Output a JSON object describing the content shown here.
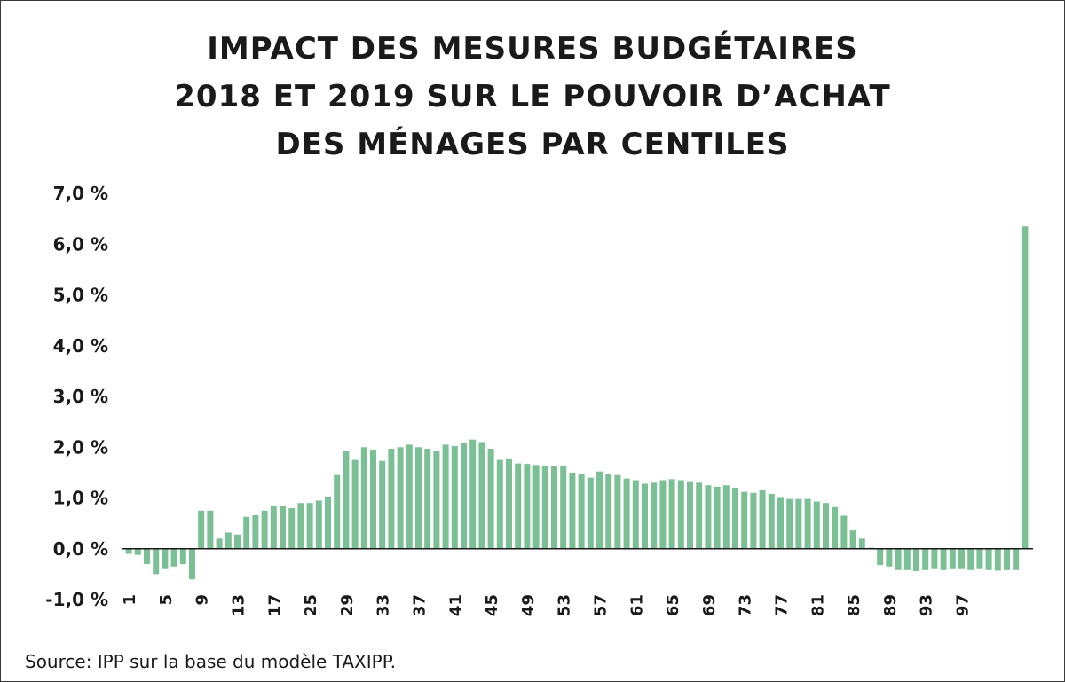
{
  "chart_data": {
    "type": "bar",
    "title_lines": [
      "IMPACT DES MESURES BUDGÉTAIRES",
      "2018 ET 2019 SUR LE POUVOIR D’ACHAT",
      "DES MÉNAGES PAR CENTILES"
    ],
    "source": "Source: IPP sur la base du modèle TAXIPP.",
    "bar_color": "#7bbf95",
    "axis_color": "#1a1a1a",
    "ylim": [
      -1.0,
      7.0
    ],
    "yticks": [
      {
        "value": 7.0,
        "label": "7,0 %"
      },
      {
        "value": 6.0,
        "label": "6,0 %"
      },
      {
        "value": 5.0,
        "label": "5,0 %"
      },
      {
        "value": 4.0,
        "label": "4,0 %"
      },
      {
        "value": 3.0,
        "label": "3,0 %"
      },
      {
        "value": 2.0,
        "label": "2,0 %"
      },
      {
        "value": 1.0,
        "label": "1,0 %"
      },
      {
        "value": 0.0,
        "label": "0,0 %"
      },
      {
        "value": -1.0,
        "label": "-1,0 %"
      }
    ],
    "xtick_labels": [
      "1",
      "5",
      "9",
      "13",
      "17",
      "25",
      "29",
      "33",
      "37",
      "41",
      "45",
      "49",
      "53",
      "57",
      "61",
      "65",
      "69",
      "73",
      "77",
      "81",
      "85",
      "89",
      "93",
      "97"
    ],
    "values": [
      -0.1,
      -0.12,
      -0.3,
      -0.5,
      -0.4,
      -0.35,
      -0.3,
      -0.6,
      0.75,
      0.75,
      0.2,
      0.32,
      0.28,
      0.63,
      0.66,
      0.75,
      0.85,
      0.85,
      0.8,
      0.9,
      0.9,
      0.95,
      1.03,
      1.45,
      1.92,
      1.75,
      2.0,
      1.95,
      1.73,
      1.97,
      2.0,
      2.05,
      2.0,
      1.97,
      1.93,
      2.05,
      2.02,
      2.08,
      2.15,
      2.1,
      1.97,
      1.75,
      1.78,
      1.68,
      1.67,
      1.65,
      1.63,
      1.63,
      1.62,
      1.5,
      1.48,
      1.4,
      1.52,
      1.48,
      1.45,
      1.38,
      1.35,
      1.28,
      1.3,
      1.35,
      1.37,
      1.35,
      1.33,
      1.3,
      1.25,
      1.22,
      1.25,
      1.2,
      1.12,
      1.1,
      1.15,
      1.08,
      1.02,
      0.98,
      0.98,
      0.98,
      0.93,
      0.9,
      0.82,
      0.65,
      0.36,
      0.2,
      0.02,
      -0.32,
      -0.35,
      -0.42,
      -0.42,
      -0.44,
      -0.42,
      -0.4,
      -0.42,
      -0.4,
      -0.4,
      -0.42,
      -0.4,
      -0.42,
      -0.43,
      -0.42,
      -0.42,
      6.35
    ]
  }
}
